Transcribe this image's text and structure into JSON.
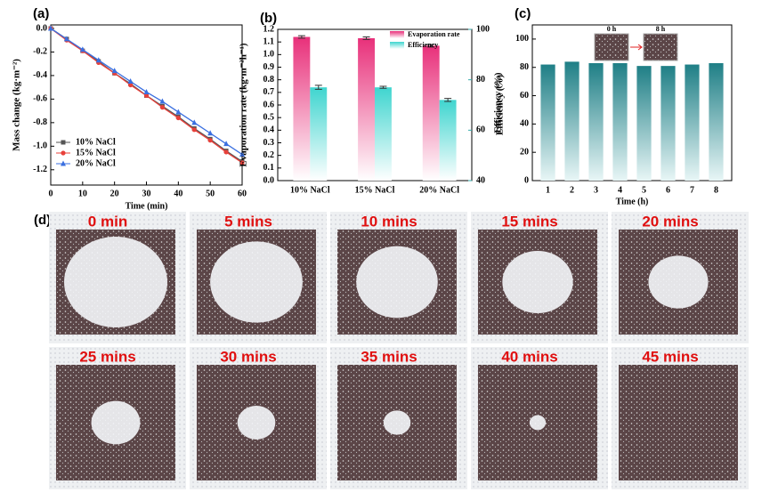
{
  "chart_data": [
    {
      "type": "line",
      "label": "(a)",
      "xlabel": "Time (min)",
      "ylabel": "Mass change (kg·m⁻²)",
      "x": [
        0,
        5,
        10,
        15,
        20,
        25,
        30,
        35,
        40,
        45,
        50,
        55,
        60
      ],
      "xlim": [
        0,
        60
      ],
      "xticks": [
        0,
        10,
        20,
        30,
        40,
        50,
        60
      ],
      "ylim": [
        -1.33,
        0.03
      ],
      "yticks": [
        {
          "value": 0,
          "label": "0.0"
        },
        {
          "value": -0.2,
          "label": "-0.2"
        },
        {
          "value": -0.4,
          "label": "-0.4"
        },
        {
          "value": -0.6,
          "label": "-0.6"
        },
        {
          "value": -0.8,
          "label": "-0.8"
        },
        {
          "value": -1.0,
          "label": "-1.0"
        },
        {
          "value": -1.2,
          "label": "-1.2"
        }
      ],
      "legend": "lower left",
      "series": [
        {
          "name": "10% NaCl",
          "color": "#555555",
          "marker": "square",
          "values": [
            0,
            -0.09,
            -0.19,
            -0.28,
            -0.38,
            -0.47,
            -0.57,
            -0.66,
            -0.75,
            -0.85,
            -0.94,
            -1.04,
            -1.13
          ]
        },
        {
          "name": "15% NaCl",
          "color": "#e8403a",
          "marker": "circle",
          "values": [
            0,
            -0.1,
            -0.19,
            -0.29,
            -0.38,
            -0.48,
            -0.57,
            -0.67,
            -0.76,
            -0.86,
            -0.95,
            -1.05,
            -1.14
          ]
        },
        {
          "name": "20% NaCl",
          "color": "#3a6fe0",
          "marker": "triangle",
          "values": [
            0,
            -0.09,
            -0.18,
            -0.27,
            -0.36,
            -0.45,
            -0.54,
            -0.62,
            -0.71,
            -0.8,
            -0.89,
            -0.98,
            -1.07
          ]
        }
      ]
    },
    {
      "type": "bar",
      "label": "(b)",
      "categories": [
        "10% NaCl",
        "15% NaCl",
        "20% NaCl"
      ],
      "ylabel": "Evaporation rate (kg·m⁻²h⁻¹)",
      "y2label": "Efficiency (%)",
      "ylim": [
        0,
        1.2
      ],
      "yticks": [
        {
          "value": 0,
          "label": "0.0"
        },
        {
          "value": 0.1,
          "label": "0.1"
        },
        {
          "value": 0.2,
          "label": "0.2"
        },
        {
          "value": 0.3,
          "label": "0.3"
        },
        {
          "value": 0.4,
          "label": "0.4"
        },
        {
          "value": 0.5,
          "label": "0.5"
        },
        {
          "value": 0.6,
          "label": "0.6"
        },
        {
          "value": 0.7,
          "label": "0.7"
        },
        {
          "value": 0.8,
          "label": "0.8"
        },
        {
          "value": 0.9,
          "label": "0.9"
        },
        {
          "value": 1.0,
          "label": "1.0"
        },
        {
          "value": 1.1,
          "label": "1.1"
        },
        {
          "value": 1.2,
          "label": "1.2"
        }
      ],
      "y2lim": [
        40,
        100
      ],
      "y2ticks": [
        40,
        60,
        80,
        100
      ],
      "legend": "upper right",
      "series": [
        {
          "name": "Evaporation rate",
          "color": "#e8307a",
          "values": [
            1.14,
            1.13,
            1.07
          ],
          "errors": [
            0.01,
            0.01,
            0.01
          ]
        },
        {
          "name": "Efficiency",
          "color": "#3fd5cf",
          "axis": "y2",
          "values": [
            77,
            77,
            72
          ],
          "errors": [
            0.8,
            0.4,
            0.6
          ]
        }
      ]
    },
    {
      "type": "bar",
      "label": "(c)",
      "categories": [
        "1",
        "2",
        "3",
        "4",
        "5",
        "6",
        "7",
        "8"
      ],
      "xlabel": "Time (h)",
      "ylabel": "Efficiency (%)",
      "ylim": [
        0,
        110
      ],
      "yticks": [
        0,
        20,
        40,
        60,
        80,
        100
      ],
      "color": "#1f7f86",
      "values": [
        82,
        84,
        83,
        83,
        81,
        81,
        82,
        83
      ],
      "insets": [
        "0 h",
        "8 h"
      ]
    }
  ],
  "photos": {
    "label": "(d)",
    "captions": [
      "0 min",
      "5 mins",
      "10 mins",
      "15 mins",
      "20 mins",
      "25 mins",
      "30 mins",
      "35 mins",
      "40 mins",
      "45 mins"
    ]
  }
}
